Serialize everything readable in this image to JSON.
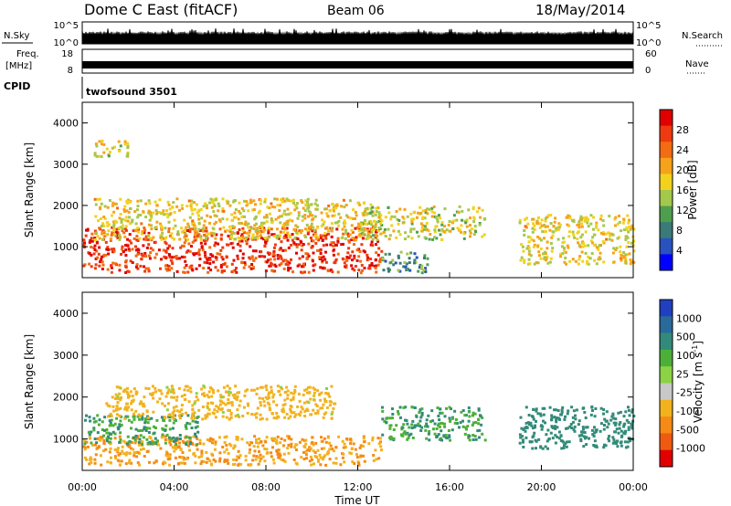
{
  "header": {
    "station": "Dome C East (fitACF)",
    "beam": "Beam 06",
    "date": "18/May/2014"
  },
  "strip_panels": {
    "nsky": {
      "label": "N.Sky",
      "ticks": [
        "10^5",
        "10^0"
      ]
    },
    "nsearch": {
      "label": "N.Search",
      "ticks": [
        "10^5",
        "10^0"
      ]
    },
    "freq": {
      "label_line1": "Freq.",
      "label_line2": "[MHz]",
      "ticks": [
        "18",
        "8"
      ]
    },
    "nave": {
      "label": "Nave",
      "ticks": [
        "60",
        "0"
      ]
    },
    "cpid": {
      "label": "CPID",
      "mode": "twofsound 3501"
    }
  },
  "colors": {
    "power": [
      "#0000ff",
      "#2a52be",
      "#3a7a78",
      "#4f9e4f",
      "#a4c84c",
      "#f2d21e",
      "#f7a21b",
      "#f36b12",
      "#ee3a10",
      "#e00000"
    ],
    "velocity": [
      "#2040c0",
      "#2a6a9a",
      "#338a7a",
      "#4cb038",
      "#8bd244",
      "#c8c8c8",
      "#f2b21e",
      "#f58a16",
      "#f05a10",
      "#e00000"
    ]
  },
  "chart_data": [
    {
      "type": "heatmap",
      "name": "power",
      "ylabel": "Slant Range [km]",
      "yticks": [
        "1000",
        "2000",
        "3000",
        "4000"
      ],
      "ylim": [
        250,
        4500
      ],
      "xlim": [
        0,
        24
      ],
      "colorbar_label": "Power [dB]",
      "colorbar_ticks": [
        "4",
        "8",
        "12",
        "16",
        "20",
        "24",
        "28"
      ],
      "colorbar_range": [
        0,
        30
      ],
      "regions": [
        {
          "x": [
            0,
            13
          ],
          "y": [
            400,
            1500
          ],
          "value": 27
        },
        {
          "x": [
            0.5,
            13
          ],
          "y": [
            1200,
            2200
          ],
          "value": 17
        },
        {
          "x": [
            12,
            17.5
          ],
          "y": [
            1200,
            2000
          ],
          "value": 15
        },
        {
          "x": [
            13,
            15
          ],
          "y": [
            400,
            900
          ],
          "value": 8
        },
        {
          "x": [
            19,
            24
          ],
          "y": [
            600,
            1800
          ],
          "value": 17
        },
        {
          "x": [
            0.5,
            2
          ],
          "y": [
            3200,
            3600
          ],
          "value": 16
        }
      ]
    },
    {
      "type": "heatmap",
      "name": "velocity",
      "ylabel": "Slant Range [km]",
      "yticks": [
        "1000",
        "2000",
        "3000",
        "4000"
      ],
      "ylim": [
        250,
        4500
      ],
      "xlim": [
        0,
        24
      ],
      "xlabel": "Time UT",
      "xticks": [
        "00:00",
        "04:00",
        "08:00",
        "12:00",
        "16:00",
        "20:00",
        "00:00"
      ],
      "colorbar_label": "Velocity [m s",
      "colorbar_unit_exp": "-1",
      "colorbar_ticks": [
        "1000",
        "500",
        "100",
        "25",
        "-25",
        "-100",
        "-500",
        "-1000"
      ],
      "regions": [
        {
          "x": [
            0,
            13
          ],
          "y": [
            400,
            1100
          ],
          "value": -100
        },
        {
          "x": [
            0,
            5
          ],
          "y": [
            900,
            1600
          ],
          "value": 100
        },
        {
          "x": [
            1,
            11
          ],
          "y": [
            1500,
            2300
          ],
          "value": -60
        },
        {
          "x": [
            13,
            17.5
          ],
          "y": [
            1000,
            1800
          ],
          "value": 100
        },
        {
          "x": [
            19,
            24
          ],
          "y": [
            800,
            1800
          ],
          "value": 200
        }
      ]
    }
  ]
}
